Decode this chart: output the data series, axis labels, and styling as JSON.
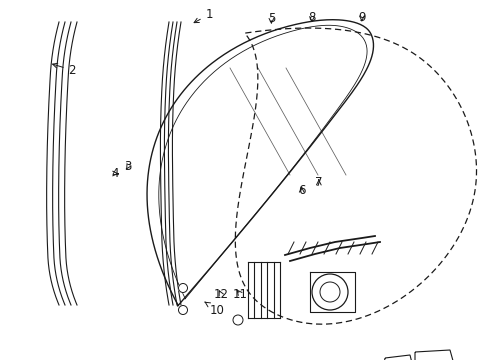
{
  "bg_color": "#ffffff",
  "line_color": "#1a1a1a",
  "lw": 0.8,
  "parts_labels": {
    "1": {
      "lxy": [
        0.428,
        0.04
      ],
      "axy": [
        0.39,
        0.068
      ]
    },
    "2": {
      "lxy": [
        0.148,
        0.195
      ],
      "axy": [
        0.1,
        0.175
      ]
    },
    "3": {
      "lxy": [
        0.262,
        0.462
      ],
      "axy": [
        0.255,
        0.478
      ]
    },
    "4": {
      "lxy": [
        0.236,
        0.482
      ],
      "axy": [
        0.248,
        0.482
      ]
    },
    "5": {
      "lxy": [
        0.555,
        0.05
      ],
      "axy": [
        0.555,
        0.075
      ]
    },
    "6": {
      "lxy": [
        0.617,
        0.53
      ],
      "axy": [
        0.617,
        0.51
      ]
    },
    "7": {
      "lxy": [
        0.652,
        0.508
      ],
      "axy": [
        0.652,
        0.49
      ]
    },
    "8": {
      "lxy": [
        0.638,
        0.048
      ],
      "axy": [
        0.638,
        0.07
      ]
    },
    "9": {
      "lxy": [
        0.74,
        0.048
      ],
      "axy": [
        0.74,
        0.068
      ]
    },
    "10": {
      "lxy": [
        0.445,
        0.862
      ],
      "axy": [
        0.418,
        0.838
      ]
    },
    "11": {
      "lxy": [
        0.492,
        0.818
      ],
      "axy": [
        0.48,
        0.798
      ]
    },
    "12": {
      "lxy": [
        0.452,
        0.818
      ],
      "axy": [
        0.445,
        0.798
      ]
    }
  }
}
